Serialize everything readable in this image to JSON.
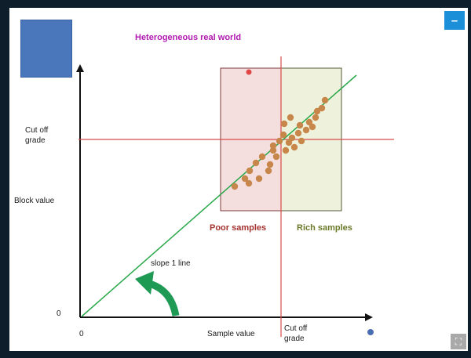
{
  "diagram": {
    "title": "Heterogeneous real world",
    "y_axis_label": "Block value",
    "x_axis_label": "Sample value",
    "y_origin": "0",
    "x_origin": "0",
    "y_cutoff_label_line1": "Cut off",
    "y_cutoff_label_line2": "grade",
    "x_cutoff_label_line1": "Cut off",
    "x_cutoff_label_line2": "grade",
    "poor_label": "Poor  samples",
    "rich_label": "Rich samples",
    "slope_label": "slope 1 line"
  },
  "controls": {
    "minimize_glyph": "–",
    "expand_glyph": "⛶"
  },
  "colors": {
    "title": "#b01ab0",
    "cutoff_line": "#d94a4a",
    "slope_line": "#2aa84a",
    "arrow": "#1f9a55",
    "poor_fill": "#f5dede",
    "rich_fill": "#eef2dc",
    "box_border": "#7a3a3a",
    "points": "#c8874a",
    "outlier": "#e04848",
    "dot": "#4a6fb0"
  }
}
